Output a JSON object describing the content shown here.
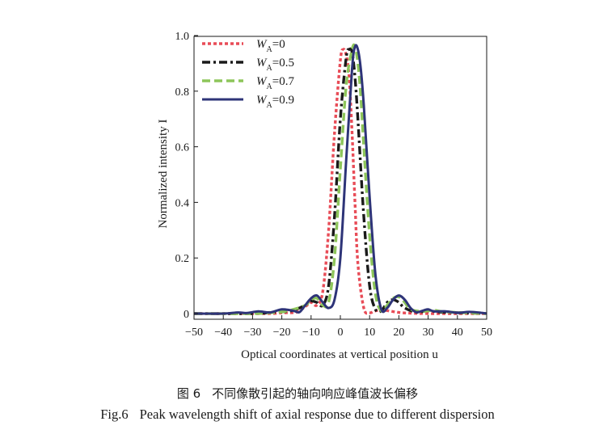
{
  "chart_data": {
    "type": "line",
    "xlabel": "Optical coordinates at vertical position u",
    "ylabel": "Normalized intensity I",
    "xlim": [
      -50,
      50
    ],
    "ylim": [
      0,
      1.0
    ],
    "x_ticks": [
      "−50",
      "−40",
      "−30",
      "−20",
      "−10",
      "0",
      "10",
      "20",
      "30",
      "40",
      "50"
    ],
    "y_ticks": [
      "0",
      "0.2",
      "0.4",
      "0.6",
      "0.8",
      "1.0"
    ],
    "legend_position": "top-left",
    "grid": false,
    "series": [
      {
        "name": "W_A=0",
        "label_main": "W",
        "label_sub": "A",
        "label_value": "=0",
        "color": "#e84c57",
        "style": "dotted",
        "x": [
          -50,
          -25,
          -20,
          -15,
          -12,
          -10,
          -8,
          -6,
          -4,
          -2,
          0,
          1,
          2,
          3,
          4,
          5,
          6,
          8,
          10,
          12,
          15,
          20,
          25,
          30,
          50
        ],
        "y": [
          0,
          0,
          0.003,
          0.005,
          0.025,
          0.04,
          0.03,
          0.08,
          0.3,
          0.65,
          0.91,
          0.95,
          0.93,
          0.85,
          0.65,
          0.4,
          0.18,
          0.02,
          0.003,
          0.01,
          0.012,
          0.004,
          0.001,
          0,
          0
        ]
      },
      {
        "name": "W_A=0.5",
        "label_main": "W",
        "label_sub": "A",
        "label_value": "=0.5",
        "color": "#1a1a1a",
        "style": "dashdot",
        "x": [
          -50,
          -30,
          -24,
          -20,
          -16,
          -12,
          -10,
          -8,
          -6,
          -4,
          -2,
          0,
          2,
          3,
          4,
          5,
          6,
          8,
          10,
          12,
          14,
          16,
          18,
          20,
          22,
          26,
          30,
          35,
          50
        ],
        "y": [
          0,
          0,
          0.004,
          0.006,
          0.012,
          0.03,
          0.045,
          0.04,
          0.03,
          0.1,
          0.35,
          0.7,
          0.92,
          0.95,
          0.94,
          0.85,
          0.7,
          0.35,
          0.1,
          0.015,
          0.01,
          0.04,
          0.05,
          0.04,
          0.02,
          0.005,
          0.01,
          0.005,
          0
        ]
      },
      {
        "name": "W_A=0.7",
        "label_main": "W",
        "label_sub": "A",
        "label_value": "=0.7",
        "color": "#8dc55a",
        "style": "dashed",
        "x": [
          -50,
          -30,
          -24,
          -20,
          -16,
          -12,
          -10,
          -8,
          -6,
          -4,
          -2,
          0,
          2,
          4,
          5,
          6,
          7,
          8,
          10,
          12,
          14,
          16,
          18,
          20,
          22,
          24,
          28,
          32,
          36,
          50
        ],
        "y": [
          0,
          0,
          0.003,
          0.006,
          0.015,
          0.03,
          0.05,
          0.055,
          0.03,
          0.04,
          0.2,
          0.52,
          0.82,
          0.95,
          0.96,
          0.9,
          0.78,
          0.6,
          0.28,
          0.07,
          0.01,
          0.03,
          0.055,
          0.06,
          0.04,
          0.015,
          0.008,
          0.012,
          0.006,
          0
        ]
      },
      {
        "name": "W_A=0.9",
        "label_main": "W",
        "label_sub": "A",
        "label_value": "=0.9",
        "color": "#2e3478",
        "style": "solid",
        "x": [
          -50,
          -40,
          -35,
          -32,
          -28,
          -24,
          -20,
          -16,
          -14,
          -12,
          -10,
          -8,
          -6,
          -4,
          -2,
          0,
          2,
          4,
          5,
          6,
          7,
          8,
          10,
          12,
          14,
          16,
          18,
          20,
          22,
          24,
          26,
          28,
          30,
          32,
          36,
          40,
          44,
          48,
          50
        ],
        "y": [
          0,
          0,
          0.004,
          0.002,
          0.008,
          0.004,
          0.015,
          0.01,
          0.005,
          0.03,
          0.055,
          0.065,
          0.04,
          0.02,
          0.05,
          0.2,
          0.55,
          0.88,
          0.96,
          0.95,
          0.88,
          0.75,
          0.42,
          0.14,
          0.015,
          0.02,
          0.05,
          0.065,
          0.05,
          0.02,
          0.005,
          0.01,
          0.015,
          0.008,
          0.008,
          0.003,
          0.006,
          0.003,
          0
        ]
      }
    ]
  },
  "caption": {
    "cn_label": "图 6",
    "cn_text": "不同像散引起的轴向响应峰值波长偏移",
    "en_label": "Fig.6",
    "en_text": "Peak wavelength shift of axial response due to different dispersion"
  }
}
